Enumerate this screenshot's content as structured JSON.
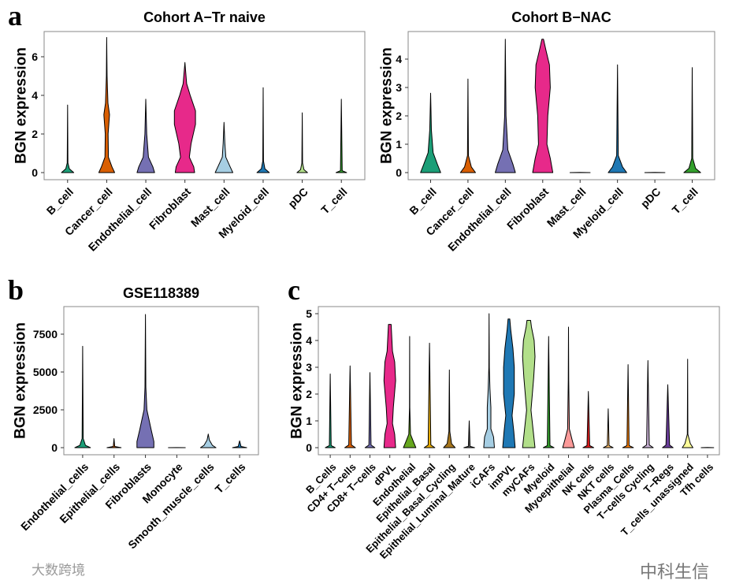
{
  "panel_letters": [
    "a",
    "b",
    "c"
  ],
  "watermarks": {
    "left": "大数跨境",
    "right": "中科生信"
  },
  "chart_data": [
    {
      "type": "violin",
      "title": "Cohort A−Tr naive",
      "ylabel": "BGN expression",
      "ylim": [
        0,
        7.3
      ],
      "yticks": [
        0,
        2,
        4,
        6
      ],
      "categories": [
        "B_cell",
        "Cancer_cell",
        "Endothelial_cell",
        "Fibroblast",
        "Mast_cell",
        "Myeloid_cell",
        "pDC",
        "T_cell"
      ],
      "colors": [
        "#1B9E77",
        "#D95F02",
        "#7570B3",
        "#E7298A",
        "#A6CEE3",
        "#1F78B4",
        "#B2DF8A",
        "#33A02C"
      ],
      "max": [
        3.5,
        7.0,
        3.8,
        5.7,
        2.6,
        4.4,
        3.1,
        3.8
      ],
      "density": [
        [
          [
            0,
            0.35
          ],
          [
            0.2,
            0.1
          ],
          [
            0.5,
            0.02
          ],
          [
            3.5,
            0
          ]
        ],
        [
          [
            0,
            0.45
          ],
          [
            0.3,
            0.3
          ],
          [
            0.8,
            0.1
          ],
          [
            2,
            0.08
          ],
          [
            3,
            0.16
          ],
          [
            3.6,
            0.07
          ],
          [
            5,
            0.02
          ],
          [
            7,
            0
          ]
        ],
        [
          [
            0,
            0.5
          ],
          [
            0.3,
            0.4
          ],
          [
            0.8,
            0.15
          ],
          [
            2,
            0.05
          ],
          [
            3.8,
            0
          ]
        ],
        [
          [
            0,
            0.55
          ],
          [
            0.3,
            0.5
          ],
          [
            0.8,
            0.25
          ],
          [
            1.5,
            0.35
          ],
          [
            2.5,
            0.6
          ],
          [
            3.2,
            0.6
          ],
          [
            4,
            0.3
          ],
          [
            4.6,
            0.1
          ],
          [
            5.7,
            0
          ]
        ],
        [
          [
            0,
            0.5
          ],
          [
            0.3,
            0.35
          ],
          [
            0.8,
            0.1
          ],
          [
            1.5,
            0.05
          ],
          [
            2.6,
            0
          ]
        ],
        [
          [
            0,
            0.35
          ],
          [
            0.2,
            0.1
          ],
          [
            0.6,
            0.02
          ],
          [
            4.4,
            0
          ]
        ],
        [
          [
            0,
            0.3
          ],
          [
            0.15,
            0.1
          ],
          [
            0.5,
            0.02
          ],
          [
            3.1,
            0
          ]
        ],
        [
          [
            0,
            0.3
          ],
          [
            0.1,
            0.05
          ],
          [
            3.8,
            0
          ]
        ]
      ]
    },
    {
      "type": "violin",
      "title": "Cohort B−NAC",
      "ylabel": "BGN expression",
      "ylim": [
        0,
        4.8
      ],
      "yticks": [
        0,
        1,
        2,
        3,
        4
      ],
      "categories": [
        "B_cell",
        "Cancer_cell",
        "Endothelial_cell",
        "Fibroblast",
        "Mast_cell",
        "Myeloid_cell",
        "pDC",
        "T_cell"
      ],
      "colors": [
        "#1B9E77",
        "#D95F02",
        "#7570B3",
        "#E7298A",
        "#A6CEE3",
        "#1F78B4",
        "#B2DF8A",
        "#33A02C"
      ],
      "max": [
        2.8,
        3.3,
        4.7,
        4.7,
        0,
        3.8,
        0,
        3.7
      ],
      "density": [
        [
          [
            0,
            0.6
          ],
          [
            0.3,
            0.4
          ],
          [
            0.7,
            0.15
          ],
          [
            1.5,
            0.05
          ],
          [
            2.8,
            0
          ]
        ],
        [
          [
            0,
            0.45
          ],
          [
            0.2,
            0.2
          ],
          [
            0.6,
            0.03
          ],
          [
            3.3,
            0
          ]
        ],
        [
          [
            0,
            0.6
          ],
          [
            0.3,
            0.45
          ],
          [
            0.8,
            0.15
          ],
          [
            2,
            0.04
          ],
          [
            4.7,
            0
          ]
        ],
        [
          [
            0,
            0.6
          ],
          [
            0.5,
            0.45
          ],
          [
            1,
            0.25
          ],
          [
            2,
            0.3
          ],
          [
            3,
            0.45
          ],
          [
            3.8,
            0.4
          ],
          [
            4.3,
            0.2
          ],
          [
            4.7,
            0.05
          ]
        ],
        [
          [
            0,
            0.6
          ],
          [
            0.005,
            0
          ]
        ],
        [
          [
            0,
            0.55
          ],
          [
            0.2,
            0.3
          ],
          [
            0.6,
            0.05
          ],
          [
            3.8,
            0
          ]
        ],
        [
          [
            0,
            0.6
          ],
          [
            0.005,
            0
          ]
        ],
        [
          [
            0,
            0.5
          ],
          [
            0.15,
            0.2
          ],
          [
            0.5,
            0.03
          ],
          [
            3.7,
            0
          ]
        ]
      ]
    },
    {
      "type": "violin",
      "title": "GSE118389",
      "ylabel": "BGN expression",
      "ylim": [
        0,
        9000
      ],
      "yticks": [
        0,
        2500,
        5000,
        7500
      ],
      "categories": [
        "Endothelial_cells",
        "Epithelial_cells",
        "Fibroblasts",
        "Monocyte",
        "Smooth_muscle_cells",
        "T_cells"
      ],
      "colors": [
        "#1B9E77",
        "#D95F02",
        "#7570B3",
        "#E7298A",
        "#A6CEE3",
        "#1F78B4"
      ],
      "max": [
        6700,
        600,
        8800,
        0,
        900,
        450
      ],
      "density": [
        [
          [
            0,
            0.55
          ],
          [
            150,
            0.2
          ],
          [
            600,
            0.04
          ],
          [
            3000,
            0.02
          ],
          [
            6700,
            0
          ]
        ],
        [
          [
            0,
            0.5
          ],
          [
            80,
            0.05
          ],
          [
            600,
            0
          ]
        ],
        [
          [
            0,
            0.6
          ],
          [
            400,
            0.6
          ],
          [
            1200,
            0.4
          ],
          [
            2500,
            0.1
          ],
          [
            4000,
            0.03
          ],
          [
            8800,
            0
          ]
        ],
        [
          [
            0,
            0.6
          ],
          [
            5,
            0
          ]
        ],
        [
          [
            0,
            0.55
          ],
          [
            150,
            0.3
          ],
          [
            500,
            0.08
          ],
          [
            900,
            0
          ]
        ],
        [
          [
            0,
            0.5
          ],
          [
            80,
            0.1
          ],
          [
            450,
            0
          ]
        ]
      ]
    },
    {
      "type": "violin",
      "title": "",
      "ylabel": "BGN expression",
      "ylim": [
        0,
        5.2
      ],
      "yticks": [
        0,
        1,
        2,
        3,
        4,
        5
      ],
      "categories": [
        "B_Cells",
        "CD4+ T−cells",
        "CD8+ T−cells",
        "dPVL",
        "Endothelial",
        "Epithelial_Basal",
        "Epithelial_Basal_Cycling",
        "Epithelial_Luminal_Mature",
        "iCAFs",
        "imPVL",
        "myCAFs",
        "Myeloid",
        "Myoepithelial",
        "NK cells",
        "NKT cells",
        "Plasma_Cells",
        "T−cells Cycling",
        "T−Regs",
        "T_cells_unassigned",
        "Tfh cells"
      ],
      "colors": [
        "#1B9E77",
        "#D95F02",
        "#7570B3",
        "#E7298A",
        "#66A61E",
        "#E6AB02",
        "#A6761D",
        "#666666",
        "#A6CEE3",
        "#1F78B4",
        "#B2DF8A",
        "#33A02C",
        "#FB9A99",
        "#E31A1C",
        "#FDBF6F",
        "#FF7F00",
        "#CAB2D6",
        "#6A3D9A",
        "#FFFF99",
        "#B15928"
      ],
      "max": [
        2.75,
        3.05,
        2.8,
        4.6,
        4.15,
        3.9,
        2.9,
        1.0,
        5.0,
        4.8,
        4.75,
        4.15,
        4.5,
        2.1,
        1.45,
        3.1,
        3.25,
        2.35,
        3.3,
        0
      ],
      "density": [
        [
          [
            0,
            0.55
          ],
          [
            0.08,
            0.1
          ],
          [
            2.75,
            0
          ]
        ],
        [
          [
            0,
            0.6
          ],
          [
            0.1,
            0.15
          ],
          [
            3.05,
            0
          ]
        ],
        [
          [
            0,
            0.55
          ],
          [
            0.1,
            0.12
          ],
          [
            2.8,
            0
          ]
        ],
        [
          [
            0,
            0.65
          ],
          [
            0.5,
            0.55
          ],
          [
            0.9,
            0.3
          ],
          [
            1.5,
            0.4
          ],
          [
            2.5,
            0.65
          ],
          [
            3.2,
            0.55
          ],
          [
            3.6,
            0.3
          ],
          [
            4.6,
            0.15
          ]
        ],
        [
          [
            0,
            0.7
          ],
          [
            0.2,
            0.45
          ],
          [
            0.5,
            0.1
          ],
          [
            1.5,
            0.02
          ],
          [
            4.15,
            0
          ]
        ],
        [
          [
            0,
            0.6
          ],
          [
            0.1,
            0.15
          ],
          [
            3.9,
            0
          ]
        ],
        [
          [
            0,
            0.65
          ],
          [
            0.15,
            0.25
          ],
          [
            0.6,
            0.05
          ],
          [
            2.9,
            0
          ]
        ],
        [
          [
            0,
            0.6
          ],
          [
            0.05,
            0.1
          ],
          [
            1.0,
            0
          ]
        ],
        [
          [
            0,
            0.6
          ],
          [
            0.4,
            0.5
          ],
          [
            0.7,
            0.2
          ],
          [
            1.5,
            0.2
          ],
          [
            2.2,
            0.1
          ],
          [
            3,
            0.03
          ],
          [
            5.0,
            0
          ]
        ],
        [
          [
            0,
            0.7
          ],
          [
            0.6,
            0.55
          ],
          [
            1.2,
            0.35
          ],
          [
            2,
            0.6
          ],
          [
            3,
            0.6
          ],
          [
            3.7,
            0.45
          ],
          [
            4.4,
            0.2
          ],
          [
            4.8,
            0.1
          ]
        ],
        [
          [
            0,
            0.7
          ],
          [
            0.6,
            0.5
          ],
          [
            1.4,
            0.25
          ],
          [
            2.6,
            0.55
          ],
          [
            3.4,
            0.7
          ],
          [
            4.0,
            0.6
          ],
          [
            4.5,
            0.3
          ],
          [
            4.75,
            0.2
          ]
        ],
        [
          [
            0,
            0.6
          ],
          [
            0.08,
            0.15
          ],
          [
            4.15,
            0
          ]
        ],
        [
          [
            0,
            0.65
          ],
          [
            0.3,
            0.4
          ],
          [
            0.7,
            0.1
          ],
          [
            2.5,
            0.03
          ],
          [
            4.5,
            0
          ]
        ],
        [
          [
            0,
            0.6
          ],
          [
            0.08,
            0.15
          ],
          [
            2.1,
            0
          ]
        ],
        [
          [
            0,
            0.55
          ],
          [
            0.08,
            0.1
          ],
          [
            1.45,
            0
          ]
        ],
        [
          [
            0,
            0.6
          ],
          [
            0.08,
            0.12
          ],
          [
            3.1,
            0
          ]
        ],
        [
          [
            0,
            0.6
          ],
          [
            0.1,
            0.15
          ],
          [
            3.25,
            0
          ]
        ],
        [
          [
            0,
            0.6
          ],
          [
            0.1,
            0.2
          ],
          [
            2.35,
            0
          ]
        ],
        [
          [
            0,
            0.6
          ],
          [
            0.15,
            0.3
          ],
          [
            0.5,
            0.03
          ],
          [
            3.3,
            0
          ]
        ],
        [
          [
            0,
            0.7
          ],
          [
            0.005,
            0
          ]
        ]
      ]
    }
  ]
}
